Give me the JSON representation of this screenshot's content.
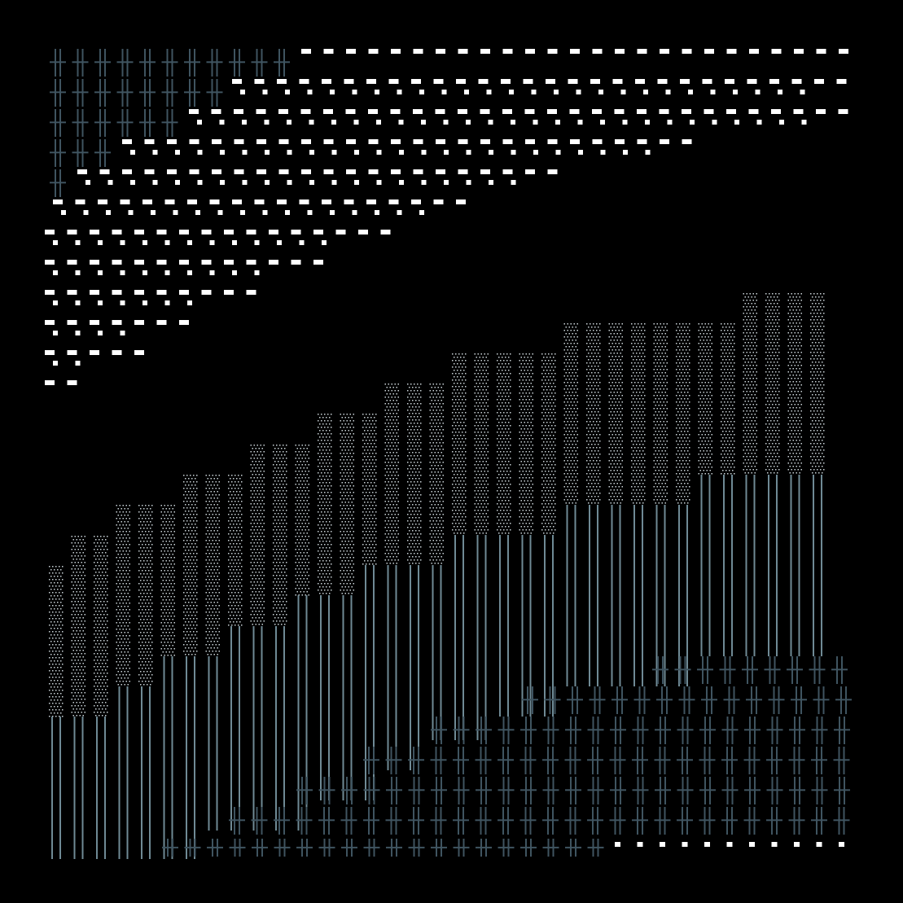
{
  "artwork": {
    "style": "generative pixel mosaic",
    "background_color": "#000000",
    "palette": {
      "dash_white": "#ffffff",
      "dot_stipple": "#c9d2d6",
      "cross_slate": "#3f5460",
      "bar_slate": "#6f8a95"
    },
    "tile_types": [
      "cross",
      "dash",
      "dot",
      "bar"
    ],
    "regions": [
      {
        "name": "top-left-cross-staircase",
        "tile": "cross",
        "color": "cross_slate"
      },
      {
        "name": "upper-dash-staircase",
        "tile": "dash",
        "color": "dash_white"
      },
      {
        "name": "middle-dot-staircase",
        "tile": "dot",
        "color": "dot_stipple"
      },
      {
        "name": "lower-bar-staircase",
        "tile": "bar",
        "color": "bar_slate"
      },
      {
        "name": "bottom-right-cross-staircase",
        "tile": "cross",
        "color": "cross_slate"
      },
      {
        "name": "bottom-right-dash-row",
        "tile": "dash",
        "color": "dash_white"
      }
    ]
  }
}
